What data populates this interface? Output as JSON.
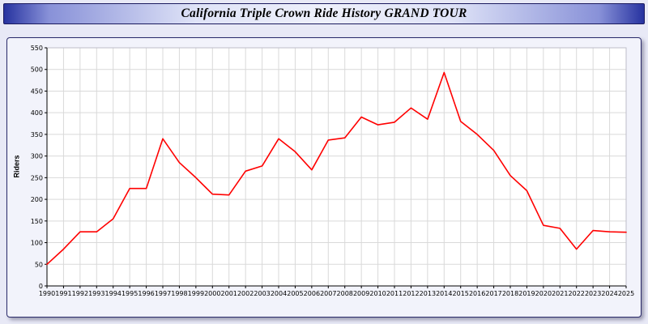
{
  "page": {
    "title_bar": {
      "text": "California Triple Crown Ride History GRAND TOUR"
    }
  },
  "chart_data": {
    "type": "line",
    "title": "California Triple Crown Ride History GRAND TOUR",
    "xlabel": "",
    "ylabel": "Riders",
    "x": [
      1990,
      1991,
      1992,
      1993,
      1994,
      1995,
      1996,
      1997,
      1998,
      1999,
      2000,
      2001,
      2002,
      2003,
      2004,
      2005,
      2006,
      2007,
      2008,
      2009,
      2010,
      2011,
      2012,
      2013,
      2014,
      2015,
      2016,
      2017,
      2018,
      2019,
      2020,
      2021,
      2022,
      2023,
      2024,
      2025
    ],
    "series": [
      {
        "name": "Riders",
        "color": "#ff0000",
        "values": [
          50,
          85,
          125,
          125,
          155,
          225,
          225,
          340,
          285,
          250,
          212,
          210,
          265,
          277,
          340,
          310,
          268,
          337,
          342,
          390,
          372,
          378,
          411,
          385,
          493,
          380,
          350,
          313,
          255,
          220,
          140,
          133,
          85,
          128,
          125,
          124
        ]
      }
    ],
    "xlim": [
      1990,
      2025
    ],
    "ylim": [
      0,
      550
    ],
    "ytick_step": 50,
    "grid": true,
    "legend": "none"
  },
  "colors": {
    "page_bg": "#e8e9f6",
    "panel_bg": "#f2f3fb",
    "plot_bg": "#ffffff",
    "grid": "#d9d9d9",
    "axis": "#000000",
    "tick_text": "#000000",
    "line": "#ff0000",
    "title_text": "#000000"
  }
}
